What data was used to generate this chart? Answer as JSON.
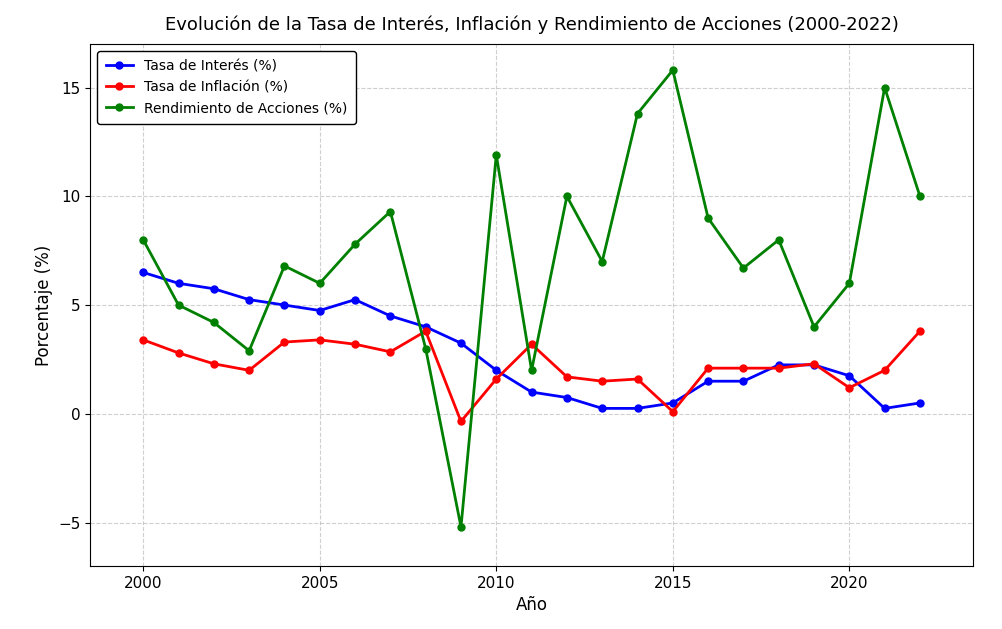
{
  "years": [
    2000,
    2001,
    2002,
    2003,
    2004,
    2005,
    2006,
    2007,
    2008,
    2009,
    2010,
    2011,
    2012,
    2013,
    2014,
    2015,
    2016,
    2017,
    2018,
    2019,
    2020,
    2021,
    2022
  ],
  "interest_rate": [
    6.5,
    6.0,
    5.75,
    5.25,
    5.0,
    4.75,
    5.25,
    4.5,
    4.0,
    3.25,
    2.0,
    1.0,
    0.75,
    0.25,
    0.25,
    0.5,
    1.5,
    1.5,
    2.25,
    2.25,
    1.75,
    0.25,
    0.5
  ],
  "inflation_rate": [
    3.4,
    2.8,
    2.3,
    2.0,
    3.3,
    3.4,
    3.2,
    2.85,
    3.8,
    -0.35,
    1.6,
    3.2,
    1.7,
    1.5,
    1.6,
    0.1,
    2.1,
    2.1,
    2.1,
    2.3,
    1.2,
    2.0,
    3.8
  ],
  "stock_return": [
    8.0,
    5.0,
    4.2,
    2.9,
    6.8,
    6.0,
    7.8,
    9.3,
    3.0,
    -5.2,
    11.9,
    2.0,
    10.0,
    7.0,
    13.8,
    15.8,
    9.0,
    6.7,
    8.0,
    4.0,
    6.0,
    15.0,
    10.0
  ],
  "title": "Evolución de la Tasa de Interés, Inflación y Rendimiento de Acciones (2000-2022)",
  "xlabel": "Año",
  "ylabel": "Porcentaje (%)",
  "legend_interest": "Tasa de Interés (%)",
  "legend_inflation": "Tasa de Inflación (%)",
  "legend_stock": "Rendimiento de Acciones (%)",
  "color_interest": "blue",
  "color_inflation": "red",
  "color_stock": "green",
  "ylim": [
    -7,
    17
  ],
  "yticks": [
    -5,
    0,
    5,
    10,
    15
  ],
  "xticks": [
    2000,
    2005,
    2010,
    2015,
    2020
  ],
  "xlim": [
    1998.5,
    2023.5
  ],
  "background_color": "white",
  "grid_color": "#b0b0b0"
}
